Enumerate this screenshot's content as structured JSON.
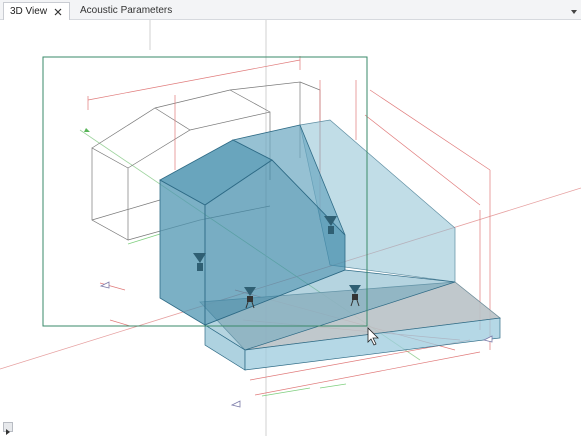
{
  "tabs": [
    {
      "label": "3D View",
      "active": true,
      "closable": true
    },
    {
      "label": "Acoustic Parameters",
      "active": false,
      "closable": false
    }
  ],
  "icons": {
    "tab_close": "close-icon",
    "tab_menu": "chevron-down-icon",
    "cursor": "mouse-pointer-icon",
    "corner": "expand-arrow-icon",
    "source": "speaker-source-icon",
    "receiver": "microphone-receiver-icon"
  },
  "colors": {
    "room_fill": "#4f95b2",
    "room_edge": "#2f6b86",
    "dimension_red": "#e07a7a",
    "axis_green": "#4caf50",
    "selection_frame": "#3a8a6a",
    "floor": "#b9c2c6"
  }
}
